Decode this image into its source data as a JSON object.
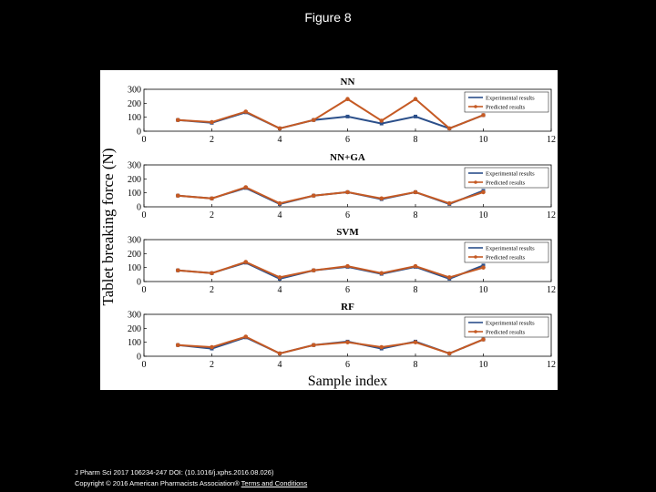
{
  "page": {
    "title": "Figure 8"
  },
  "footer": {
    "citation": "J Pharm Sci 2017 106234-247 DOI: (10.1016/j.xphs.2016.08.026)",
    "copyright": "Copyright © 2016 American Pharmacists Association® ",
    "terms_link": "Terms and Conditions"
  },
  "colors": {
    "experimental": "#2b4f8a",
    "predicted": "#c55a24"
  },
  "chart_data": {
    "type": "line",
    "ylabel": "Tablet breaking force (N)",
    "xlabel": "Sample index",
    "xlim": [
      0,
      12
    ],
    "xticks": [
      0,
      2,
      4,
      6,
      8,
      10,
      12
    ],
    "ylim": [
      0,
      300
    ],
    "yticks": [
      0,
      100,
      200,
      300
    ],
    "legend_position": "top-right",
    "legend": [
      "Experimental results",
      "Predicted results"
    ],
    "panels": [
      {
        "title": "NN",
        "x": [
          1,
          2,
          3,
          4,
          5,
          6,
          7,
          8,
          9,
          10
        ],
        "series": [
          {
            "name": "Experimental results",
            "values": [
              80,
              60,
              135,
              20,
              80,
              105,
              55,
              105,
              20,
              115
            ]
          },
          {
            "name": "Predicted results",
            "values": [
              80,
              65,
              140,
              20,
              80,
              230,
              75,
              230,
              20,
              115
            ]
          }
        ]
      },
      {
        "title": "NN+GA",
        "x": [
          1,
          2,
          3,
          4,
          5,
          6,
          7,
          8,
          9,
          10
        ],
        "series": [
          {
            "name": "Experimental results",
            "values": [
              80,
              60,
              135,
              20,
              80,
              105,
              55,
              105,
              20,
              115
            ]
          },
          {
            "name": "Predicted results",
            "values": [
              80,
              60,
              140,
              25,
              80,
              105,
              60,
              105,
              25,
              105
            ]
          }
        ]
      },
      {
        "title": "SVM",
        "x": [
          1,
          2,
          3,
          4,
          5,
          6,
          7,
          8,
          9,
          10
        ],
        "series": [
          {
            "name": "Experimental results",
            "values": [
              80,
              60,
              135,
              20,
              80,
              105,
              55,
              105,
              20,
              115
            ]
          },
          {
            "name": "Predicted results",
            "values": [
              80,
              60,
              140,
              30,
              80,
              110,
              60,
              110,
              30,
              100
            ]
          }
        ]
      },
      {
        "title": "RF",
        "x": [
          1,
          2,
          3,
          4,
          5,
          6,
          7,
          8,
          9,
          10
        ],
        "series": [
          {
            "name": "Experimental results",
            "values": [
              80,
              55,
              135,
              20,
              80,
              105,
              55,
              105,
              20,
              120
            ]
          },
          {
            "name": "Predicted results",
            "values": [
              80,
              65,
              140,
              20,
              80,
              100,
              65,
              100,
              20,
              120
            ]
          }
        ]
      }
    ]
  }
}
